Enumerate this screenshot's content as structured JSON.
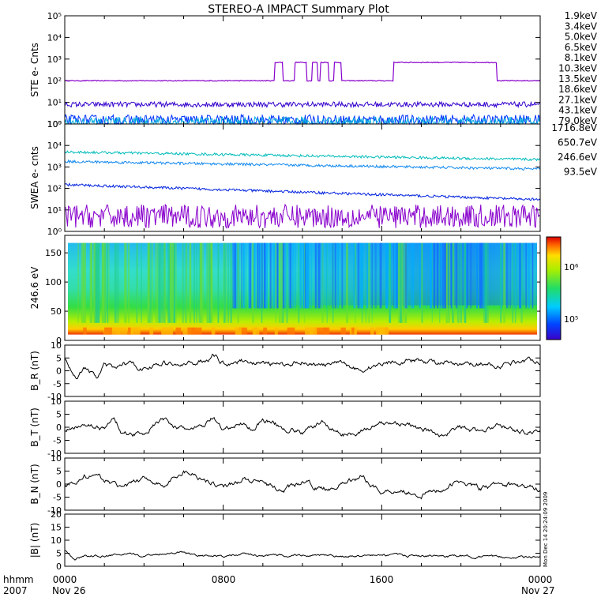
{
  "title": "STEREO-A IMPACT Summary Plot",
  "timestamp": "Mon Dec 14 20:24:09 2009",
  "x_axis": {
    "row_labels": [
      "hhmm",
      "2007"
    ],
    "ticks": [
      "0000",
      "0800",
      "1600",
      "0000"
    ],
    "dates": [
      "Nov 26",
      "Nov 27"
    ]
  },
  "legend_ste": [
    {
      "label": "1.9keV",
      "color": "#8800cc"
    },
    {
      "label": "3.4keV",
      "color": "#3300cc"
    },
    {
      "label": "5.0keV",
      "color": "#0033ff"
    },
    {
      "label": "6.5keV",
      "color": "#00aadd"
    },
    {
      "label": "8.1keV",
      "color": "#00cc99"
    },
    {
      "label": "10.3keV",
      "color": "#33cc33"
    },
    {
      "label": "13.5keV",
      "color": "#33bb00"
    },
    {
      "label": "18.6keV",
      "color": "#bbbb00"
    },
    {
      "label": "27.1keV",
      "color": "#ffaa00"
    },
    {
      "label": "43.1keV",
      "color": "#ee5500"
    },
    {
      "label": "79.0keV",
      "color": "#cc0000"
    }
  ],
  "legend_swea": [
    {
      "label": "1716.8eV",
      "color": "#8800cc"
    },
    {
      "label": "650.7eV",
      "color": "#0022dd"
    },
    {
      "label": "246.6eV",
      "color": "#1188ee"
    },
    {
      "label": "93.5eV",
      "color": "#00bbbb"
    }
  ],
  "panels": {
    "ste": {
      "ylabel": "STE e- Cnts",
      "ticks": [
        "10⁰",
        "10¹",
        "10²",
        "10³",
        "10⁴",
        "10⁵"
      ]
    },
    "swea": {
      "ylabel": "SWEA e- cnts",
      "ticks": [
        "10⁰",
        "10¹",
        "10²",
        "10³",
        "10⁴",
        "10⁵"
      ]
    },
    "spec": {
      "ylabel": "246.6 eV",
      "ticks": [
        "0",
        "50",
        "100",
        "150"
      ],
      "colorbar_ticks": [
        "10⁶",
        "10⁵"
      ]
    },
    "br": {
      "ylabel": "B_R (nT)",
      "ticks": [
        "-10",
        "-5",
        "0",
        "5",
        "10"
      ]
    },
    "bt": {
      "ylabel": "B_T (nT)",
      "ticks": [
        "-10",
        "-5",
        "0",
        "5",
        "10"
      ]
    },
    "bn": {
      "ylabel": "B_N (nT)",
      "ticks": [
        "-10",
        "-5",
        "0",
        "5",
        "10"
      ]
    },
    "bmag": {
      "ylabel": "|B| (nT)",
      "ticks": [
        "0",
        "5",
        "10",
        "15",
        "20"
      ]
    }
  },
  "chart_data": [
    {
      "type": "line",
      "title": "STEREO-A IMPACT Summary Plot",
      "ylabel": "STE e- Cnts",
      "yscale": "log",
      "ylim": [
        1,
        100000
      ],
      "x_unit": "hours since 2007 Nov 26 0000",
      "xlim": [
        0,
        24
      ],
      "series": [
        {
          "name": "1.9keV",
          "base": 100,
          "steps": [
            [
              10.6,
              700
            ],
            [
              11.0,
              100
            ],
            [
              11.6,
              700
            ],
            [
              12.2,
              100
            ],
            [
              12.5,
              700
            ],
            [
              12.75,
              100
            ],
            [
              12.9,
              700
            ],
            [
              13.3,
              100
            ],
            [
              13.6,
              700
            ],
            [
              13.95,
              100
            ],
            [
              16.6,
              700
            ],
            [
              21.8,
              100
            ]
          ]
        },
        {
          "name": "3.4keV",
          "base": 8
        },
        {
          "name": "5.0keV",
          "base": 1.5
        },
        {
          "name": "6.5keV",
          "base": 1.2
        }
      ]
    },
    {
      "type": "line",
      "ylabel": "SWEA e- cnts",
      "yscale": "log",
      "ylim": [
        1,
        100000
      ],
      "xlim": [
        0,
        24
      ],
      "series": [
        {
          "name": "93.5eV",
          "start": 5000,
          "end": 2200
        },
        {
          "name": "246.6eV",
          "start": 1800,
          "end": 800
        },
        {
          "name": "650.7eV",
          "start": 150,
          "end": 30
        },
        {
          "name": "1716.8eV",
          "start": 5,
          "end": 5
        }
      ]
    },
    {
      "type": "heatmap",
      "ylabel": "246.6 eV",
      "ylim": [
        0,
        180
      ],
      "colorbar": {
        "scale": "log",
        "ticks": [
          "10⁵",
          "10⁶"
        ]
      }
    },
    {
      "type": "line",
      "ylabel": "B_R (nT)",
      "ylim": [
        -10,
        10
      ],
      "xlim": [
        0,
        24
      ],
      "series": [
        {
          "name": "",
          "x": [
            0,
            0.6,
            1,
            1.6,
            2,
            2.5,
            3,
            3.5,
            4,
            5,
            6,
            7,
            7.5,
            8,
            9,
            10,
            11,
            12,
            13,
            14,
            15,
            16,
            17,
            18,
            19,
            20,
            21,
            22,
            23,
            24
          ],
          "y": [
            5,
            -2,
            1,
            -3,
            2,
            0,
            3,
            2,
            1,
            3,
            2,
            4,
            6,
            3,
            4,
            3,
            2,
            4,
            2,
            3,
            0,
            3,
            4,
            4,
            3,
            2,
            3,
            2,
            4,
            4
          ]
        }
      ]
    },
    {
      "type": "line",
      "ylabel": "B_T (nT)",
      "ylim": [
        -10,
        10
      ],
      "xlim": [
        0,
        24
      ],
      "series": [
        {
          "name": "",
          "x": [
            0,
            1,
            2,
            2.5,
            3,
            4,
            4.5,
            5,
            6,
            7,
            7.5,
            8,
            9,
            9.5,
            10,
            11,
            12,
            13,
            14,
            15,
            16,
            17,
            18,
            19,
            20,
            21,
            22,
            23,
            24
          ],
          "y": [
            -2,
            2,
            -1,
            4,
            -3,
            -2,
            1,
            3,
            -1,
            0,
            4,
            -2,
            2,
            -1,
            3,
            0,
            -2,
            2,
            -3,
            -1,
            1,
            2,
            -1,
            -3,
            0,
            -2,
            1,
            -2,
            -1
          ]
        }
      ]
    },
    {
      "type": "line",
      "ylabel": "B_N (nT)",
      "ylim": [
        -10,
        10
      ],
      "xlim": [
        0,
        24
      ],
      "series": [
        {
          "name": "",
          "x": [
            0,
            1,
            2,
            3,
            4,
            5,
            6,
            6.5,
            7,
            8,
            9,
            10,
            11,
            12,
            13,
            14,
            15,
            16,
            17,
            18,
            19,
            20,
            21,
            22,
            23,
            24
          ],
          "y": [
            -1,
            3,
            2,
            -2,
            3,
            -1,
            5,
            4,
            2,
            -1,
            2,
            0,
            -3,
            1,
            -2,
            0,
            3,
            -3,
            -2,
            -4,
            -2,
            1,
            -2,
            0,
            -1,
            -2
          ]
        }
      ]
    },
    {
      "type": "line",
      "ylabel": "|B| (nT)",
      "ylim": [
        0,
        20
      ],
      "xlim": [
        0,
        24
      ],
      "series": [
        {
          "name": "",
          "x": [
            0,
            0.5,
            1,
            2,
            3,
            4,
            5,
            6,
            7,
            8,
            9,
            10,
            12,
            14,
            16,
            18,
            20,
            22,
            24
          ],
          "y": [
            6,
            3,
            4,
            4,
            4.5,
            4,
            5,
            5.5,
            4,
            3.8,
            4.5,
            4,
            4.3,
            3.8,
            4.2,
            4,
            3.8,
            3.5,
            3.5
          ]
        }
      ]
    }
  ]
}
